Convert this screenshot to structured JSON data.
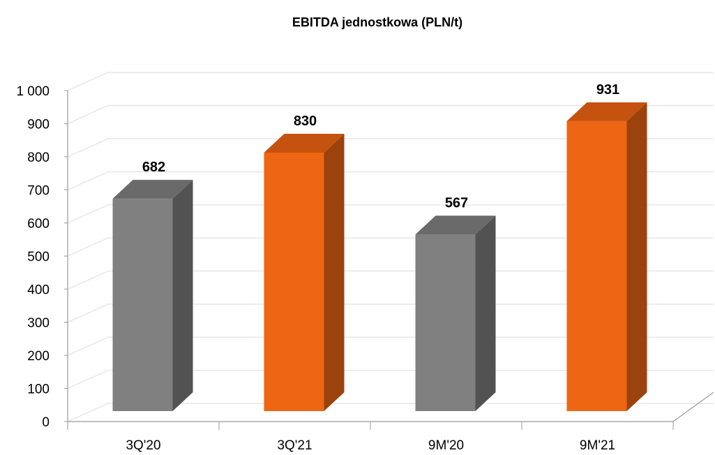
{
  "chart_data": {
    "type": "bar",
    "title": "EBITDA jednostkowa (PLN/t)",
    "categories": [
      "3Q'20",
      "3Q'21",
      "9M'20",
      "9M'21"
    ],
    "values": [
      682,
      830,
      567,
      931
    ],
    "value_labels": [
      "682",
      "830",
      "567",
      "931"
    ],
    "bar_colors": [
      "#808080",
      "#ee6513",
      "#808080",
      "#ee6513"
    ],
    "side_colors": [
      "#525252",
      "#9c420c",
      "#525252",
      "#9c420c"
    ],
    "top_colors": [
      "#6a6a6a",
      "#c5520f",
      "#6a6a6a",
      "#c5520f"
    ],
    "ylim": [
      0,
      1000
    ],
    "yticks": [
      0,
      100,
      200,
      300,
      400,
      500,
      600,
      700,
      800,
      900,
      1000
    ],
    "ytick_labels": [
      "0",
      "100",
      "200",
      "300",
      "400",
      "500",
      "600",
      "700",
      "800",
      "900",
      "1 000"
    ],
    "xlabel": "",
    "ylabel": "",
    "grid": true,
    "legend": false,
    "style": "3d-column"
  }
}
